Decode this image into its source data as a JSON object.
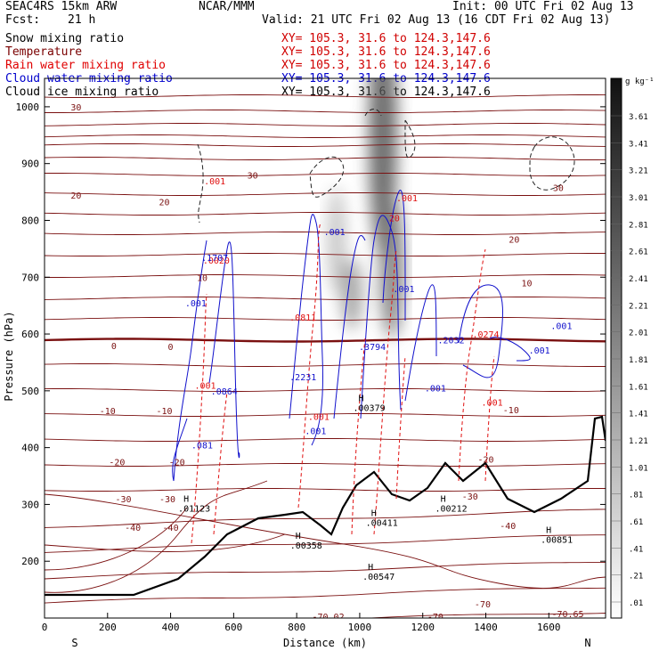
{
  "header": {
    "model": "SEAC4RS 15km ARW",
    "center": "NCAR/MMM",
    "init": "Init: 00 UTC Fri 02 Aug 13",
    "fcst_label": "Fcst:",
    "fcst_value": "21 h",
    "valid": "Valid: 21 UTC Fri 02 Aug 13 (16 CDT Fri 02 Aug 13)"
  },
  "fields": [
    {
      "name": "Snow mixing ratio",
      "xy": "XY= 105.3, 31.6 to 124.3,147.6",
      "color": "#000000"
    },
    {
      "name": "Temperature",
      "xy": "XY= 105.3, 31.6 to 124.3,147.6",
      "color": "#7a0000"
    },
    {
      "name": "Rain water mixing ratio",
      "xy": "XY= 105.3, 31.6 to 124.3,147.6",
      "color": "#e00000"
    },
    {
      "name": "Cloud water mixing ratio",
      "xy": "XY= 105.3, 31.6 to 124.3,147.6",
      "color": "#0000cc"
    },
    {
      "name": "Cloud ice mixing ratio",
      "xy": "XY= 105.3, 31.6 to 124.3,147.6",
      "color": "#000000"
    }
  ],
  "colorbar": {
    "unit": "g kg⁻¹",
    "labels": [
      "3.61",
      "3.41",
      "3.21",
      "3.01",
      "2.81",
      "2.61",
      "2.41",
      "2.21",
      "2.01",
      "1.81",
      "1.61",
      "1.41",
      "1.21",
      "1.01",
      ".81",
      ".61",
      ".41",
      ".21",
      ".01"
    ]
  },
  "chart_data": {
    "type": "cross-section",
    "xlabel": "Distance (km)",
    "ylabel": "Pressure (hPa)",
    "xlim": [
      0,
      1780
    ],
    "ylim": [
      1050,
      100
    ],
    "x_ticks": [
      "0",
      "200",
      "400",
      "600",
      "800",
      "1000",
      "1200",
      "1400",
      "1600"
    ],
    "x_tick_values": [
      0,
      200,
      400,
      600,
      800,
      1000,
      1200,
      1400,
      1600
    ],
    "y_ticks": [
      "200",
      "300",
      "400",
      "500",
      "600",
      "700",
      "800",
      "900",
      "1000"
    ],
    "y_tick_values": [
      200,
      300,
      400,
      500,
      600,
      700,
      800,
      900,
      1000
    ],
    "endpoint_left": "S",
    "endpoint_right": "N",
    "temperature_labels": [
      {
        "text": "-40",
        "x": 280,
        "p": 260
      },
      {
        "text": "-40",
        "x": 400,
        "p": 260
      },
      {
        "text": "-40",
        "x": 1470,
        "p": 263
      },
      {
        "text": "-30",
        "x": 250,
        "p": 310
      },
      {
        "text": "-30",
        "x": 390,
        "p": 310
      },
      {
        "text": "-30",
        "x": 1350,
        "p": 315
      },
      {
        "text": "-20",
        "x": 230,
        "p": 375
      },
      {
        "text": "-20",
        "x": 420,
        "p": 375
      },
      {
        "text": "-20",
        "x": 1400,
        "p": 380
      },
      {
        "text": "-10",
        "x": 200,
        "p": 465
      },
      {
        "text": "-10",
        "x": 380,
        "p": 465
      },
      {
        "text": "-10",
        "x": 1480,
        "p": 467
      },
      {
        "text": "0",
        "x": 220,
        "p": 580
      },
      {
        "text": "0",
        "x": 400,
        "p": 578
      },
      {
        "text": "10",
        "x": 500,
        "p": 700
      },
      {
        "text": "10",
        "x": 1530,
        "p": 690
      },
      {
        "text": "20",
        "x": 100,
        "p": 845
      },
      {
        "text": "20",
        "x": 380,
        "p": 833
      },
      {
        "text": "20",
        "x": 1490,
        "p": 767
      },
      {
        "text": "30",
        "x": 660,
        "p": 880
      },
      {
        "text": "30",
        "x": 1630,
        "p": 858
      },
      {
        "text": "30",
        "x": 100,
        "p": 1000
      }
    ],
    "snow_maxima": [
      {
        "text": ".01123",
        "x": 475,
        "p": 295
      },
      {
        "text": ".00358",
        "x": 830,
        "p": 230
      },
      {
        "text": ".00547",
        "x": 1060,
        "p": 175
      },
      {
        "text": ".00411",
        "x": 1070,
        "p": 270
      },
      {
        "text": ".00212",
        "x": 1290,
        "p": 295
      },
      {
        "text": ".00851",
        "x": 1625,
        "p": 240
      },
      {
        "text": ".00379",
        "x": 1030,
        "p": 472
      }
    ],
    "rain_labels": [
      {
        "text": ".001",
        "x": 510,
        "p": 510
      },
      {
        "text": ".001",
        "x": 870,
        "p": 455
      },
      {
        "text": ".0811",
        "x": 820,
        "p": 630
      },
      {
        "text": ".001",
        "x": 1420,
        "p": 480
      },
      {
        "text": ".0274",
        "x": 1400,
        "p": 600
      },
      {
        "text": ".001",
        "x": 540,
        "p": 870
      },
      {
        "text": ".001",
        "x": 1150,
        "p": 840
      },
      {
        "text": "20",
        "x": 1110,
        "p": 805
      },
      {
        "text": ".0020",
        "x": 545,
        "p": 730
      }
    ],
    "cloud_water_labels": [
      {
        "text": ".081",
        "x": 500,
        "p": 405
      },
      {
        "text": ".0864",
        "x": 570,
        "p": 500
      },
      {
        "text": ".2231",
        "x": 820,
        "p": 525
      },
      {
        "text": ".001",
        "x": 860,
        "p": 430
      },
      {
        "text": ".3794",
        "x": 1040,
        "p": 578
      },
      {
        "text": ".001",
        "x": 1240,
        "p": 505
      },
      {
        "text": ".001",
        "x": 1570,
        "p": 572
      },
      {
        "text": ".001",
        "x": 1640,
        "p": 615
      },
      {
        "text": ".2032",
        "x": 1290,
        "p": 590
      },
      {
        "text": ".001",
        "x": 480,
        "p": 655
      },
      {
        "text": ".001",
        "x": 920,
        "p": 780
      },
      {
        "text": ".001",
        "x": 1140,
        "p": 680
      },
      {
        "text": ".1707",
        "x": 540,
        "p": 735
      }
    ],
    "top_labels": [
      {
        "text": "-70.02",
        "x": 900,
        "p": 103
      },
      {
        "text": "-70",
        "x": 1240,
        "p": 103
      },
      {
        "text": "-70",
        "x": 1390,
        "p": 125
      },
      {
        "text": "-70.65",
        "x": 1660,
        "p": 108
      }
    ]
  }
}
